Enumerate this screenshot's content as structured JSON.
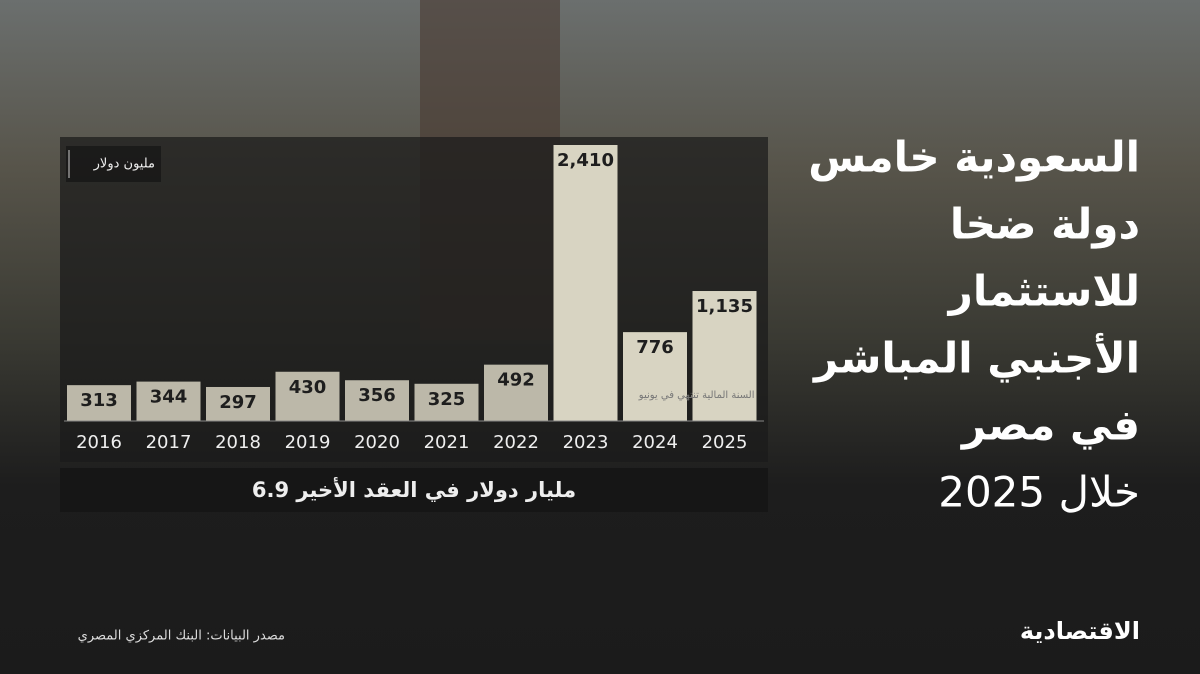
{
  "chart_data": {
    "type": "bar",
    "title_lines": [
      "السعودية خامس",
      "دولة ضخا",
      "للاستثمار",
      "الأجنبي المباشر",
      "في مصر",
      "خلال 2025"
    ],
    "unit_label": "مليون دولار",
    "categories": [
      "2016",
      "2017",
      "2018",
      "2019",
      "2020",
      "2021",
      "2022",
      "2023",
      "2024",
      "2025"
    ],
    "values": [
      313,
      344,
      297,
      430,
      356,
      325,
      492,
      2410,
      776,
      1135
    ],
    "value_labels": [
      "313",
      "344",
      "297",
      "430",
      "356",
      "325",
      "492",
      "2,410",
      "776",
      "1,135"
    ],
    "color": "#d8d4c2",
    "annotation": "السنة المالية تنتهي في يونيو",
    "summary": "6.9 مليار دولار في العقد الأخير",
    "source": "مصدر البيانات: البنك المركزي المصري",
    "logo": "الاقتصادية"
  }
}
